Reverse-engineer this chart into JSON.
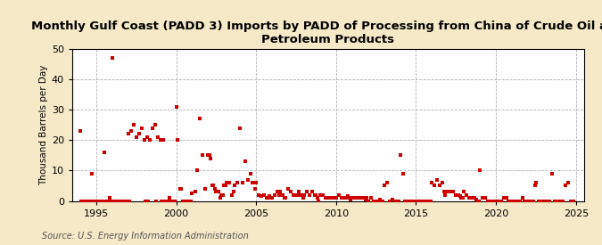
{
  "title": "Monthly Gulf Coast (PADD 3) Imports by PADD of Processing from China of Crude Oil and\nPetroleum Products",
  "ylabel": "Thousand Barrels per Day",
  "source": "Source: U.S. Energy Information Administration",
  "bg_color": "#f5e9c8",
  "plot_bg_color": "#ffffff",
  "marker_color": "#cc0000",
  "marker_size": 5,
  "xlim": [
    1993.5,
    2025.5
  ],
  "ylim": [
    -1,
    50
  ],
  "ylim_display": [
    0,
    50
  ],
  "yticks": [
    0,
    10,
    20,
    30,
    40,
    50
  ],
  "xticks": [
    1995,
    2000,
    2005,
    2010,
    2015,
    2020,
    2025
  ],
  "data": [
    [
      1994.0,
      23.0
    ],
    [
      1994.75,
      9.0
    ],
    [
      1995.5,
      16.0
    ],
    [
      1996.0,
      47.0
    ],
    [
      1997.0,
      22.0
    ],
    [
      1997.17,
      23.0
    ],
    [
      1997.33,
      25.0
    ],
    [
      1997.5,
      21.0
    ],
    [
      1997.67,
      22.0
    ],
    [
      1997.83,
      24.0
    ],
    [
      1998.0,
      20.0
    ],
    [
      1998.17,
      21.0
    ],
    [
      1998.33,
      20.0
    ],
    [
      1998.5,
      24.0
    ],
    [
      1998.67,
      25.0
    ],
    [
      1998.83,
      21.0
    ],
    [
      1999.0,
      20.0
    ],
    [
      1999.17,
      20.0
    ],
    [
      1994.08,
      0.0
    ],
    [
      1994.25,
      0.0
    ],
    [
      1994.42,
      0.0
    ],
    [
      1994.58,
      0.0
    ],
    [
      1994.67,
      0.0
    ],
    [
      1994.83,
      0.0
    ],
    [
      1995.0,
      0.0
    ],
    [
      1995.08,
      0.0
    ],
    [
      1995.17,
      0.0
    ],
    [
      1995.25,
      0.0
    ],
    [
      1995.33,
      0.0
    ],
    [
      1995.42,
      0.0
    ],
    [
      1995.58,
      0.0
    ],
    [
      1995.67,
      0.0
    ],
    [
      1995.75,
      0.0
    ],
    [
      1995.83,
      1.0
    ],
    [
      1995.92,
      0.0
    ],
    [
      1996.08,
      0.0
    ],
    [
      1996.17,
      0.0
    ],
    [
      1996.25,
      0.0
    ],
    [
      1996.42,
      0.0
    ],
    [
      1996.5,
      0.0
    ],
    [
      1996.58,
      0.0
    ],
    [
      1996.67,
      0.0
    ],
    [
      1996.75,
      0.0
    ],
    [
      1996.83,
      0.0
    ],
    [
      1996.92,
      0.0
    ],
    [
      1997.08,
      0.0
    ],
    [
      1998.08,
      0.0
    ],
    [
      1998.25,
      0.0
    ],
    [
      1998.75,
      0.0
    ],
    [
      1999.08,
      0.0
    ],
    [
      1999.25,
      0.0
    ],
    [
      1999.33,
      0.0
    ],
    [
      1999.42,
      0.0
    ],
    [
      1999.5,
      0.0
    ],
    [
      1999.58,
      1.0
    ],
    [
      1999.67,
      0.0
    ],
    [
      1999.75,
      0.0
    ],
    [
      1999.83,
      0.0
    ],
    [
      1999.92,
      0.0
    ],
    [
      2000.0,
      31.0
    ],
    [
      2000.08,
      20.0
    ],
    [
      2000.25,
      4.0
    ],
    [
      2000.33,
      4.0
    ],
    [
      2000.42,
      0.0
    ],
    [
      2000.5,
      0.0
    ],
    [
      2000.58,
      0.0
    ],
    [
      2000.67,
      0.0
    ],
    [
      2000.75,
      0.0
    ],
    [
      2000.83,
      0.0
    ],
    [
      2000.92,
      0.0
    ],
    [
      2001.0,
      2.5
    ],
    [
      2001.17,
      3.0
    ],
    [
      2001.33,
      10.0
    ],
    [
      2001.5,
      27.0
    ],
    [
      2001.67,
      15.0
    ],
    [
      2001.83,
      4.0
    ],
    [
      2002.0,
      15.0
    ],
    [
      2002.08,
      15.0
    ],
    [
      2002.17,
      14.0
    ],
    [
      2002.25,
      5.0
    ],
    [
      2002.33,
      5.0
    ],
    [
      2002.42,
      4.0
    ],
    [
      2002.5,
      3.0
    ],
    [
      2002.67,
      3.0
    ],
    [
      2002.75,
      1.0
    ],
    [
      2002.83,
      2.0
    ],
    [
      2002.92,
      2.0
    ],
    [
      2003.0,
      5.0
    ],
    [
      2003.08,
      5.0
    ],
    [
      2003.17,
      6.0
    ],
    [
      2003.33,
      6.0
    ],
    [
      2003.5,
      2.0
    ],
    [
      2003.58,
      3.0
    ],
    [
      2003.67,
      5.0
    ],
    [
      2003.83,
      6.0
    ],
    [
      2004.0,
      24.0
    ],
    [
      2004.17,
      6.0
    ],
    [
      2004.33,
      13.0
    ],
    [
      2004.5,
      7.0
    ],
    [
      2004.67,
      9.0
    ],
    [
      2004.75,
      6.0
    ],
    [
      2004.92,
      4.0
    ],
    [
      2005.0,
      6.0
    ],
    [
      2005.17,
      2.0
    ],
    [
      2005.33,
      1.5
    ],
    [
      2005.5,
      2.0
    ],
    [
      2005.67,
      1.0
    ],
    [
      2005.75,
      1.0
    ],
    [
      2005.83,
      1.5
    ],
    [
      2005.92,
      1.0
    ],
    [
      2006.0,
      1.0
    ],
    [
      2006.17,
      2.0
    ],
    [
      2006.33,
      3.0
    ],
    [
      2006.42,
      2.0
    ],
    [
      2006.5,
      3.0
    ],
    [
      2006.67,
      2.0
    ],
    [
      2006.75,
      1.0
    ],
    [
      2006.83,
      1.0
    ],
    [
      2007.0,
      4.0
    ],
    [
      2007.17,
      3.0
    ],
    [
      2007.33,
      2.0
    ],
    [
      2007.5,
      2.0
    ],
    [
      2007.67,
      3.0
    ],
    [
      2007.75,
      2.0
    ],
    [
      2007.83,
      2.0
    ],
    [
      2007.92,
      1.0
    ],
    [
      2008.0,
      2.0
    ],
    [
      2008.17,
      3.0
    ],
    [
      2008.33,
      2.0
    ],
    [
      2008.5,
      3.0
    ],
    [
      2008.67,
      2.0
    ],
    [
      2008.75,
      2.0
    ],
    [
      2008.83,
      1.0
    ],
    [
      2008.92,
      0.0
    ],
    [
      2009.0,
      2.0
    ],
    [
      2009.17,
      2.0
    ],
    [
      2009.33,
      1.0
    ],
    [
      2009.5,
      1.0
    ],
    [
      2009.67,
      1.0
    ],
    [
      2009.75,
      1.0
    ],
    [
      2009.83,
      1.0
    ],
    [
      2009.92,
      1.0
    ],
    [
      2010.0,
      1.0
    ],
    [
      2010.17,
      2.0
    ],
    [
      2010.33,
      1.0
    ],
    [
      2010.5,
      1.0
    ],
    [
      2010.67,
      1.0
    ],
    [
      2010.75,
      1.5
    ],
    [
      2010.83,
      1.0
    ],
    [
      2010.92,
      0.5
    ],
    [
      2011.0,
      1.0
    ],
    [
      2011.17,
      1.0
    ],
    [
      2011.33,
      1.0
    ],
    [
      2011.5,
      1.0
    ],
    [
      2011.67,
      1.0
    ],
    [
      2011.75,
      1.0
    ],
    [
      2011.83,
      0.5
    ],
    [
      2011.92,
      1.0
    ],
    [
      2012.0,
      0.0
    ],
    [
      2012.17,
      1.0
    ],
    [
      2012.33,
      0.0
    ],
    [
      2012.5,
      0.0
    ],
    [
      2012.67,
      0.0
    ],
    [
      2012.75,
      0.5
    ],
    [
      2012.83,
      0.0
    ],
    [
      2012.92,
      0.0
    ],
    [
      2013.0,
      5.0
    ],
    [
      2013.17,
      6.0
    ],
    [
      2013.33,
      0.0
    ],
    [
      2013.5,
      0.5
    ],
    [
      2013.67,
      0.0
    ],
    [
      2013.75,
      0.0
    ],
    [
      2013.83,
      0.0
    ],
    [
      2013.92,
      0.0
    ],
    [
      2014.0,
      15.0
    ],
    [
      2014.17,
      9.0
    ],
    [
      2014.33,
      0.0
    ],
    [
      2014.5,
      0.0
    ],
    [
      2014.67,
      0.0
    ],
    [
      2014.75,
      0.0
    ],
    [
      2014.83,
      0.0
    ],
    [
      2014.92,
      0.0
    ],
    [
      2015.0,
      0.0
    ],
    [
      2015.17,
      0.0
    ],
    [
      2015.33,
      0.0
    ],
    [
      2015.5,
      0.0
    ],
    [
      2015.67,
      0.0
    ],
    [
      2015.75,
      0.0
    ],
    [
      2015.83,
      0.0
    ],
    [
      2015.92,
      0.0
    ],
    [
      2016.0,
      6.0
    ],
    [
      2016.17,
      5.0
    ],
    [
      2016.33,
      7.0
    ],
    [
      2016.5,
      5.0
    ],
    [
      2016.67,
      6.0
    ],
    [
      2016.75,
      3.0
    ],
    [
      2016.83,
      2.0
    ],
    [
      2016.92,
      3.0
    ],
    [
      2017.0,
      3.0
    ],
    [
      2017.17,
      3.0
    ],
    [
      2017.33,
      3.0
    ],
    [
      2017.5,
      2.0
    ],
    [
      2017.67,
      2.0
    ],
    [
      2017.75,
      1.5
    ],
    [
      2017.83,
      1.0
    ],
    [
      2017.92,
      1.0
    ],
    [
      2018.0,
      3.0
    ],
    [
      2018.17,
      2.0
    ],
    [
      2018.33,
      1.0
    ],
    [
      2018.5,
      1.0
    ],
    [
      2018.67,
      1.0
    ],
    [
      2018.75,
      0.5
    ],
    [
      2018.83,
      0.0
    ],
    [
      2018.92,
      0.0
    ],
    [
      2019.0,
      10.0
    ],
    [
      2019.17,
      1.0
    ],
    [
      2019.33,
      1.0
    ],
    [
      2019.5,
      0.0
    ],
    [
      2019.67,
      0.0
    ],
    [
      2019.75,
      0.0
    ],
    [
      2019.83,
      0.0
    ],
    [
      2019.92,
      0.0
    ],
    [
      2020.0,
      0.0
    ],
    [
      2020.17,
      0.0
    ],
    [
      2020.33,
      0.0
    ],
    [
      2020.5,
      1.0
    ],
    [
      2020.67,
      1.0
    ],
    [
      2020.75,
      0.0
    ],
    [
      2020.83,
      0.0
    ],
    [
      2020.92,
      0.0
    ],
    [
      2021.0,
      0.0
    ],
    [
      2021.17,
      0.0
    ],
    [
      2021.33,
      0.0
    ],
    [
      2021.5,
      0.0
    ],
    [
      2021.67,
      1.0
    ],
    [
      2021.75,
      0.0
    ],
    [
      2021.83,
      0.0
    ],
    [
      2021.92,
      0.0
    ],
    [
      2022.0,
      0.0
    ],
    [
      2022.17,
      0.0
    ],
    [
      2022.33,
      0.0
    ],
    [
      2022.42,
      5.0
    ],
    [
      2022.5,
      6.0
    ],
    [
      2022.67,
      0.0
    ],
    [
      2022.75,
      0.0
    ],
    [
      2022.83,
      0.0
    ],
    [
      2023.0,
      0.0
    ],
    [
      2023.17,
      0.0
    ],
    [
      2023.33,
      0.0
    ],
    [
      2023.5,
      9.0
    ],
    [
      2023.67,
      0.0
    ],
    [
      2023.75,
      0.0
    ],
    [
      2023.83,
      0.0
    ],
    [
      2023.92,
      0.0
    ],
    [
      2024.0,
      0.0
    ],
    [
      2024.17,
      0.0
    ],
    [
      2024.33,
      5.0
    ],
    [
      2024.5,
      6.0
    ],
    [
      2024.67,
      0.0
    ],
    [
      2024.75,
      0.0
    ],
    [
      2024.83,
      0.0
    ]
  ]
}
